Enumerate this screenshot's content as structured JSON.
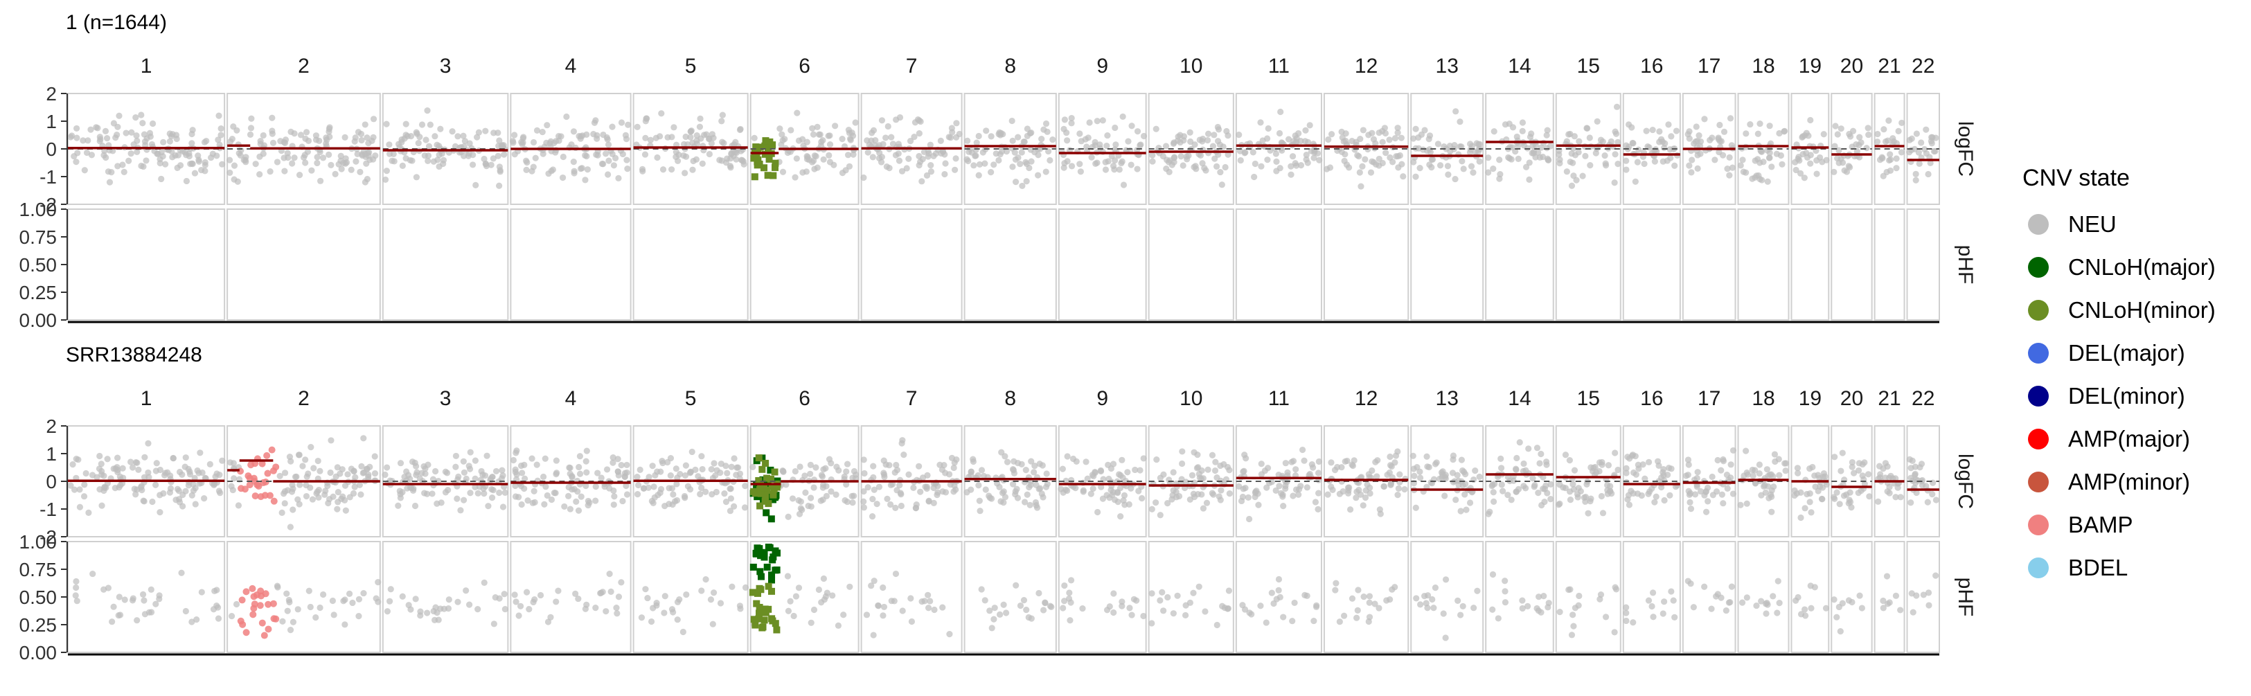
{
  "chart_data": {
    "type": "scatter",
    "layout": "facet-grid",
    "chromosomes": [
      "1",
      "2",
      "3",
      "4",
      "5",
      "6",
      "7",
      "8",
      "9",
      "10",
      "11",
      "12",
      "13",
      "14",
      "15",
      "16",
      "17",
      "18",
      "19",
      "20",
      "21",
      "22"
    ],
    "chrom_relative_widths": [
      248,
      242,
      198,
      190,
      181,
      171,
      159,
      145,
      138,
      134,
      135,
      133,
      114,
      107,
      102,
      90,
      83,
      80,
      59,
      64,
      47,
      51
    ],
    "rows": [
      {
        "label": "logFC",
        "ylim": [
          -2,
          2
        ],
        "ticks": [
          "2",
          "1",
          "0",
          "-1",
          "-2"
        ],
        "tick_values": [
          2,
          1,
          0,
          -1,
          -2
        ]
      },
      {
        "label": "pHF",
        "ylim": [
          0,
          1
        ],
        "ticks": [
          "1.00",
          "0.75",
          "0.50",
          "0.25",
          "0.00"
        ],
        "tick_values": [
          1,
          0.75,
          0.5,
          0.25,
          0
        ]
      }
    ],
    "panels": [
      {
        "title": "1 (n=1644)",
        "segments": [
          {
            "chrom": "1",
            "x": [
              0,
              1
            ],
            "y": 0.03
          },
          {
            "chrom": "2",
            "x": [
              0,
              0.15
            ],
            "y": 0.12
          },
          {
            "chrom": "2",
            "x": [
              0.15,
              1
            ],
            "y": 0.02
          },
          {
            "chrom": "3",
            "x": [
              0,
              1
            ],
            "y": -0.05
          },
          {
            "chrom": "4",
            "x": [
              0,
              1
            ],
            "y": 0.0
          },
          {
            "chrom": "5",
            "x": [
              0,
              1
            ],
            "y": 0.05
          },
          {
            "chrom": "6",
            "x": [
              0,
              0.26
            ],
            "y": -0.15
          },
          {
            "chrom": "6",
            "x": [
              0.26,
              1
            ],
            "y": 0.0
          },
          {
            "chrom": "7",
            "x": [
              0,
              1
            ],
            "y": 0.02
          },
          {
            "chrom": "8",
            "x": [
              0,
              1
            ],
            "y": 0.1
          },
          {
            "chrom": "9",
            "x": [
              0,
              1
            ],
            "y": -0.15
          },
          {
            "chrom": "10",
            "x": [
              0,
              1
            ],
            "y": -0.1
          },
          {
            "chrom": "11",
            "x": [
              0,
              1
            ],
            "y": 0.12
          },
          {
            "chrom": "12",
            "x": [
              0,
              1
            ],
            "y": 0.08
          },
          {
            "chrom": "13",
            "x": [
              0,
              1
            ],
            "y": -0.25
          },
          {
            "chrom": "14",
            "x": [
              0,
              1
            ],
            "y": 0.25
          },
          {
            "chrom": "15",
            "x": [
              0,
              1
            ],
            "y": 0.12
          },
          {
            "chrom": "16",
            "x": [
              0,
              1
            ],
            "y": -0.2
          },
          {
            "chrom": "17",
            "x": [
              0,
              1
            ],
            "y": 0.0
          },
          {
            "chrom": "18",
            "x": [
              0,
              1
            ],
            "y": 0.1
          },
          {
            "chrom": "19",
            "x": [
              0,
              1
            ],
            "y": 0.05
          },
          {
            "chrom": "20",
            "x": [
              0,
              1
            ],
            "y": -0.2
          },
          {
            "chrom": "21",
            "x": [
              0,
              1
            ],
            "y": 0.1
          },
          {
            "chrom": "22",
            "x": [
              0,
              1
            ],
            "y": -0.4
          }
        ],
        "highlights": [
          {
            "chrom": "6",
            "x": [
              0.02,
              0.24
            ],
            "state": "CNLoH(minor)",
            "logFC_points": true,
            "pHF_points": false
          }
        ]
      },
      {
        "title": "SRR13884248",
        "segments": [
          {
            "chrom": "1",
            "x": [
              0,
              1
            ],
            "y": 0.02
          },
          {
            "chrom": "2",
            "x": [
              0,
              0.08
            ],
            "y": 0.4
          },
          {
            "chrom": "2",
            "x": [
              0.08,
              0.3
            ],
            "y": 0.75
          },
          {
            "chrom": "2",
            "x": [
              0.3,
              1
            ],
            "y": 0.0
          },
          {
            "chrom": "3",
            "x": [
              0,
              1
            ],
            "y": -0.1
          },
          {
            "chrom": "4",
            "x": [
              0,
              1
            ],
            "y": -0.05
          },
          {
            "chrom": "5",
            "x": [
              0,
              1
            ],
            "y": 0.02
          },
          {
            "chrom": "6",
            "x": [
              0,
              0.28
            ],
            "y": -0.1
          },
          {
            "chrom": "6",
            "x": [
              0.28,
              1
            ],
            "y": 0.0
          },
          {
            "chrom": "7",
            "x": [
              0,
              1
            ],
            "y": 0.0
          },
          {
            "chrom": "8",
            "x": [
              0,
              1
            ],
            "y": 0.08
          },
          {
            "chrom": "9",
            "x": [
              0,
              1
            ],
            "y": -0.1
          },
          {
            "chrom": "10",
            "x": [
              0,
              1
            ],
            "y": -0.15
          },
          {
            "chrom": "11",
            "x": [
              0,
              1
            ],
            "y": 0.12
          },
          {
            "chrom": "12",
            "x": [
              0,
              1
            ],
            "y": 0.05
          },
          {
            "chrom": "13",
            "x": [
              0,
              1
            ],
            "y": -0.3
          },
          {
            "chrom": "14",
            "x": [
              0,
              1
            ],
            "y": 0.25
          },
          {
            "chrom": "15",
            "x": [
              0,
              1
            ],
            "y": 0.15
          },
          {
            "chrom": "16",
            "x": [
              0,
              1
            ],
            "y": -0.1
          },
          {
            "chrom": "17",
            "x": [
              0,
              1
            ],
            "y": -0.05
          },
          {
            "chrom": "18",
            "x": [
              0,
              1
            ],
            "y": 0.05
          },
          {
            "chrom": "19",
            "x": [
              0,
              1
            ],
            "y": 0.0
          },
          {
            "chrom": "20",
            "x": [
              0,
              1
            ],
            "y": -0.2
          },
          {
            "chrom": "21",
            "x": [
              0,
              1
            ],
            "y": 0.0
          },
          {
            "chrom": "22",
            "x": [
              0,
              1
            ],
            "y": -0.3
          }
        ],
        "highlights": [
          {
            "chrom": "2",
            "x": [
              0.08,
              0.32
            ],
            "state": "BAMP",
            "logFC_points": true,
            "pHF_points": true
          },
          {
            "chrom": "6",
            "x": [
              0.02,
              0.25
            ],
            "state": "CNLoH(major)",
            "logFC_points": true,
            "pHF_points": true
          },
          {
            "chrom": "6",
            "x": [
              0.02,
              0.25
            ],
            "state": "CNLoH(minor)",
            "logFC_points": true,
            "pHF_points": true
          }
        ]
      }
    ],
    "legend": {
      "title": "CNV state",
      "placement": "right",
      "entries": [
        {
          "label": "NEU",
          "color": "#BEBEBE"
        },
        {
          "label": "CNLoH(major)",
          "color": "#006400"
        },
        {
          "label": "CNLoH(minor)",
          "color": "#6B8E23"
        },
        {
          "label": "DEL(major)",
          "color": "#4169E1"
        },
        {
          "label": "DEL(minor)",
          "color": "#00008B"
        },
        {
          "label": "AMP(major)",
          "color": "#FF0000"
        },
        {
          "label": "AMP(minor)",
          "color": "#C8553D"
        },
        {
          "label": "BAMP",
          "color": "#F08080"
        },
        {
          "label": "BDEL",
          "color": "#87CEEB"
        }
      ]
    },
    "segment_color": "#8B0000",
    "reference_line": {
      "y": 0,
      "style": "dashed",
      "color": "#555555"
    },
    "grid": false
  }
}
